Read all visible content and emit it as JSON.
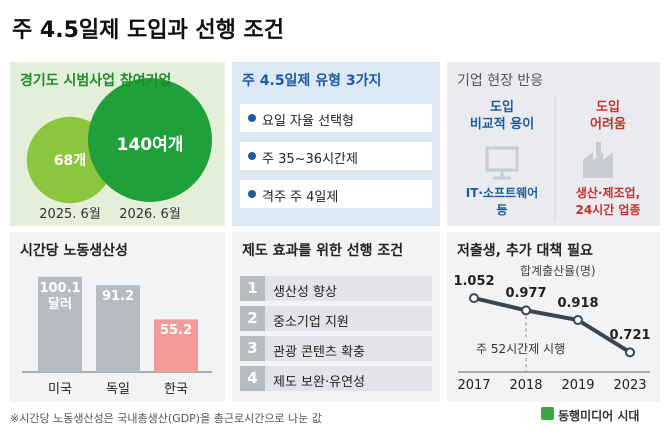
{
  "title": "주 4.5일제 도입과 선행 조건",
  "pilot": {
    "title": "경기도 시범사업 참여기업",
    "bubbles": [
      {
        "value": 68,
        "label": "68개",
        "date": "2025. 6월",
        "color": "#8cc63f"
      },
      {
        "value": 140,
        "label": "140여개",
        "date": "2026. 6월",
        "color": "#1fa03a"
      }
    ]
  },
  "types": {
    "title": "주 4.5일제 유형 3가지",
    "items": [
      "요일 자율 선택형",
      "주 35~36시간제",
      "격주 주 4일제"
    ]
  },
  "reaction": {
    "title": "기업 현장 반응",
    "columns": [
      {
        "heading": [
          "도입",
          "비교적 용이"
        ],
        "detail": [
          "IT·소프트웨어",
          "등"
        ]
      },
      {
        "heading": [
          "도입",
          "어려움"
        ],
        "detail": [
          "생산·제조업,",
          "24시간 업종"
        ]
      }
    ]
  },
  "productivity": {
    "title": "시간당 노동생산성",
    "categories": [
      "미국",
      "독일",
      "한국"
    ],
    "values": [
      100.1,
      91.2,
      55.2
    ],
    "value_labels": [
      "100.1\n달러",
      "91.2",
      "55.2"
    ],
    "colors": [
      "#b7bcc3",
      "#b7bcc3",
      "#f59a9a"
    ],
    "ylim": [
      0,
      105
    ]
  },
  "conditions": {
    "title": "제도 효과를 위한 선행 조건",
    "items": [
      {
        "number": "1",
        "text": "생산성 향상"
      },
      {
        "number": "2",
        "text": "중소기업 지원"
      },
      {
        "number": "3",
        "text": "관광 콘텐츠 확충"
      },
      {
        "number": "4",
        "text": "제도 보완·유연성"
      }
    ]
  },
  "fertility": {
    "title": "저출생, 추가 대책 필요",
    "subtitle": "합계출산율(명)",
    "categories": [
      "2017",
      "2018",
      "2019",
      "2023"
    ],
    "values": [
      1.052,
      0.977,
      0.918,
      0.721
    ],
    "value_labels": [
      "1.052",
      "0.977",
      "0.918",
      "0.721"
    ],
    "annotation": "주 52시간제 시행",
    "annotation_at": "2018",
    "ylim": [
      0.65,
      1.15
    ],
    "color": "#3d4450"
  },
  "footnote": "※시간당 노동생산성은 국내총생산(GDP)을 총근로시간으로 나눈 값",
  "source": "동행미디어 시대"
}
